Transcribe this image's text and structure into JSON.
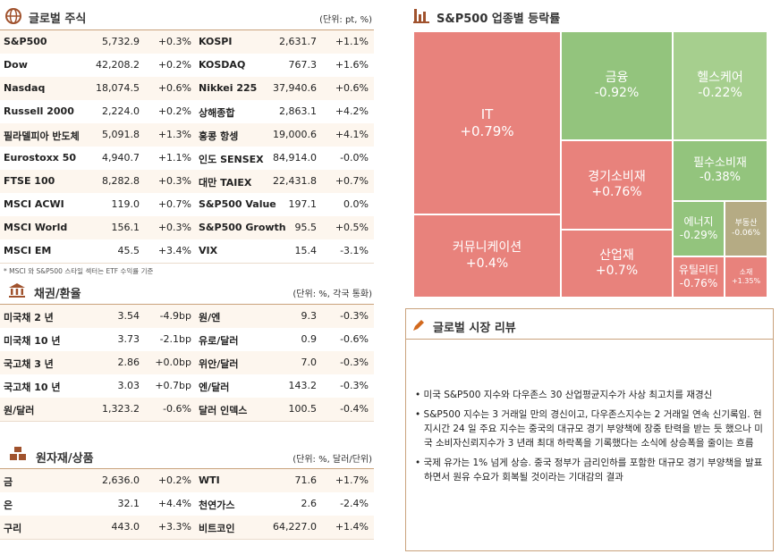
{
  "global_stocks": {
    "title": "글로벌 주식",
    "unit": "(단위: pt, %)",
    "rows": [
      [
        "S&P500",
        "5,732.9",
        "+0.3%",
        "KOSPI",
        "2,631.7",
        "+1.1%"
      ],
      [
        "Dow",
        "42,208.2",
        "+0.2%",
        "KOSDAQ",
        "767.3",
        "+1.6%"
      ],
      [
        "Nasdaq",
        "18,074.5",
        "+0.6%",
        "Nikkei 225",
        "37,940.6",
        "+0.6%"
      ],
      [
        "Russell 2000",
        "2,224.0",
        "+0.2%",
        "상해종합",
        "2,863.1",
        "+4.2%"
      ],
      [
        "필라델피아 반도체",
        "5,091.8",
        "+1.3%",
        "홍콩 항셍",
        "19,000.6",
        "+4.1%"
      ],
      [
        "Eurostoxx 50",
        "4,940.7",
        "+1.1%",
        "인도 SENSEX",
        "84,914.0",
        "-0.0%"
      ],
      [
        "FTSE 100",
        "8,282.8",
        "+0.3%",
        "대만 TAIEX",
        "22,431.8",
        "+0.7%"
      ],
      [
        "MSCI ACWI",
        "119.0",
        "+0.7%",
        "S&P500 Value",
        "197.1",
        "0.0%"
      ],
      [
        "MSCI World",
        "156.1",
        "+0.3%",
        "S&P500 Growth",
        "95.5",
        "+0.5%"
      ],
      [
        "MSCI EM",
        "45.5",
        "+3.4%",
        "VIX",
        "15.4",
        "-3.1%"
      ]
    ],
    "footnote": "* MSCI 와 S&P500 스타일 섹터는 ETF 수익률 기준"
  },
  "bonds_fx": {
    "title": "채권/환율",
    "unit": "(단위: %, 각국 통화)",
    "rows": [
      [
        "미국채 2 년",
        "3.54",
        "-4.9bp",
        "원/엔",
        "9.3",
        "-0.3%"
      ],
      [
        "미국채 10 년",
        "3.73",
        "-2.1bp",
        "유로/달러",
        "0.9",
        "-0.6%"
      ],
      [
        "국고채 3 년",
        "2.86",
        "+0.0bp",
        "위안/달러",
        "7.0",
        "-0.3%"
      ],
      [
        "국고채 10 년",
        "3.03",
        "+0.7bp",
        "엔/달러",
        "143.2",
        "-0.3%"
      ],
      [
        "원/달러",
        "1,323.2",
        "-0.6%",
        "달러 인덱스",
        "100.5",
        "-0.4%"
      ]
    ]
  },
  "commodities": {
    "title": "원자재/상품",
    "unit": "(단위: %, 달러/단위)",
    "rows": [
      [
        "금",
        "2,636.0",
        "+0.2%",
        "WTI",
        "71.6",
        "+1.7%"
      ],
      [
        "은",
        "32.1",
        "+4.4%",
        "천연가스",
        "2.6",
        "-2.4%"
      ],
      [
        "구리",
        "443.0",
        "+3.3%",
        "비트코인",
        "64,227.0",
        "+1.4%"
      ]
    ]
  },
  "sector_map": {
    "title": "S&P500 업종별 등락률",
    "tiles": [
      {
        "name": "IT",
        "change": "+0.79%"
      },
      {
        "name": "커뮤니케이션",
        "change": "+0.4%"
      },
      {
        "name": "금융",
        "change": "-0.92%"
      },
      {
        "name": "헬스케어",
        "change": "-0.22%"
      },
      {
        "name": "경기소비재",
        "change": "+0.76%"
      },
      {
        "name": "산업재",
        "change": "+0.7%"
      },
      {
        "name": "필수소비재",
        "change": "-0.38%"
      },
      {
        "name": "에너지",
        "change": "-0.29%"
      },
      {
        "name": "부동산",
        "change": "-0.06%"
      },
      {
        "name": "유틸리티",
        "change": "-0.76%"
      },
      {
        "name": "소재",
        "change": "+1.35%"
      }
    ]
  },
  "review": {
    "title": "글로벌 시장 리뷰",
    "bullets": [
      "• 미국 S&P500 지수와 다우존스 30 산업평균지수가 사상 최고치를 재경신",
      "• S&P500 지수는 3 거래일 만의 경신이고, 다우존스지수는 2 거래일 연속 신기록임. 현지시간 24 일 주요 지수는 중국의 대규모 경기 부양책에 장중 탄력을 받는 듯 했으나 미국 소비자신뢰지수가 3 년래 최대 하락폭을 기록했다는 소식에 상승폭을 줄이는 흐름",
      "• 국제 유가는 1% 넘게 상승. 중국 정부가 금리인하를 포함한 대규모 경기 부양책을 발표하면서 원유 수요가 회복될 것이라는 기대감의 결과"
    ]
  }
}
